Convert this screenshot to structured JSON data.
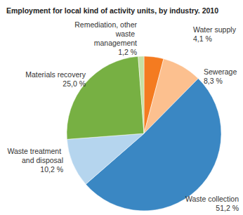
{
  "chart_data": {
    "type": "pie",
    "title": "Employment for local kind of activity units, by industry. 2010",
    "categories": [
      "Water supply",
      "Sewerage",
      "Waste collection",
      "Waste treatment and disposal",
      "Materials recovery",
      "Remediation, other waste management"
    ],
    "values": [
      4.1,
      8.3,
      51.2,
      10.2,
      25.0,
      1.2
    ],
    "value_labels": [
      "4,1 %",
      "8,3 %",
      "51,2 %",
      "10,2 %",
      "25,0 %",
      "1,2 %"
    ],
    "colors": [
      "#f47b20",
      "#fcc08f",
      "#3a87c3",
      "#b5d5ee",
      "#77b043",
      "#c6e0a4"
    ],
    "data_labels": true
  }
}
